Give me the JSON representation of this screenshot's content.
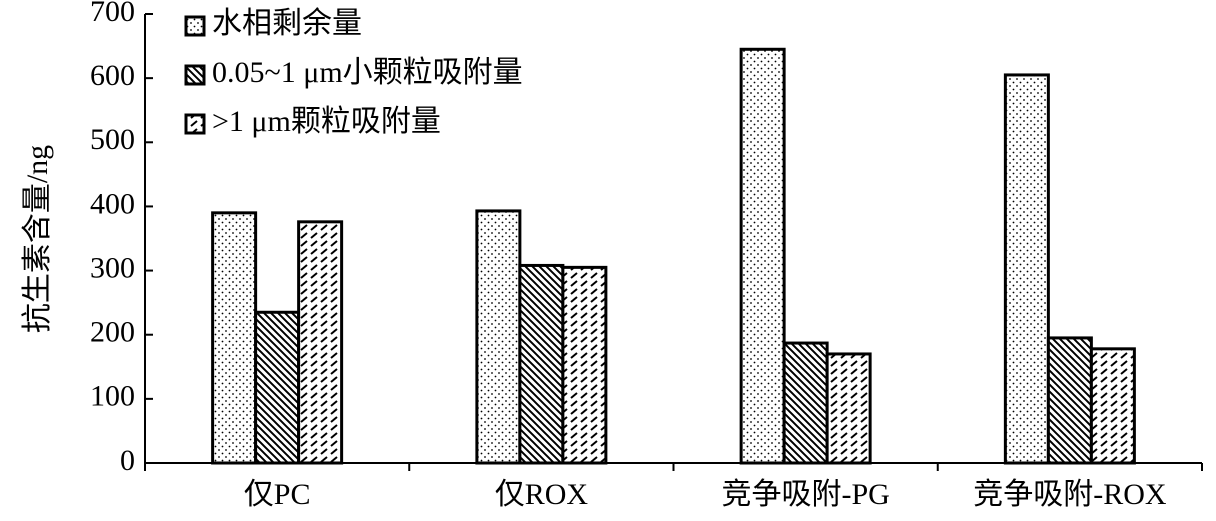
{
  "chart_data": {
    "type": "bar",
    "y_label": "抗生素含量/ng",
    "categories": [
      "仅PC",
      "仅ROX",
      "竞争吸附-PG",
      "竞争吸附-ROX"
    ],
    "series": [
      {
        "name": "水相剩余量",
        "color": "#000000",
        "pattern": "dots",
        "values": [
          390,
          393,
          645,
          605
        ]
      },
      {
        "name": "0.05~1 μm小颗粒吸附量",
        "color": "#000000",
        "pattern": "backslash",
        "values": [
          235,
          308,
          187,
          195
        ]
      },
      {
        "name": ">1 μm颗粒吸附量",
        "color": "#000000",
        "pattern": "dashslash",
        "values": [
          376,
          305,
          170,
          178
        ]
      }
    ],
    "ylim": [
      0,
      700
    ],
    "yticks": [
      0,
      100,
      200,
      300,
      400,
      500,
      600,
      700
    ],
    "grid": false
  }
}
